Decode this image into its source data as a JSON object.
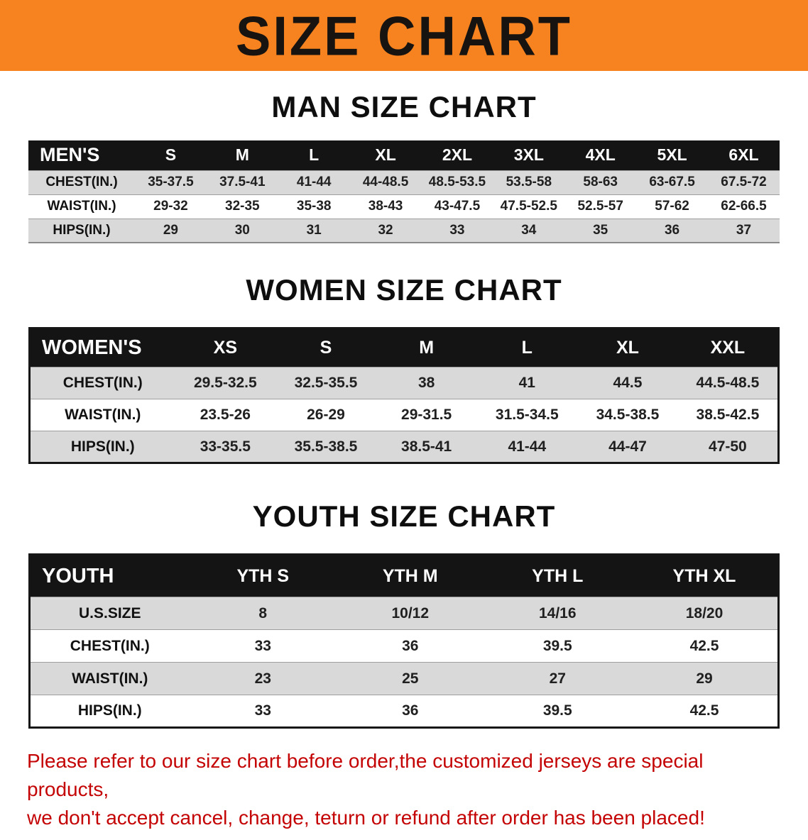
{
  "banner": {
    "title": "SIZE CHART"
  },
  "colors": {
    "banner_bg": "#F6831F",
    "table_header_bg": "#141414",
    "row_gray": "#D9D9D9",
    "disclaimer_red": "#C40404"
  },
  "sections": {
    "men": {
      "heading": "MAN SIZE CHART",
      "table": {
        "header": [
          "MEN'S",
          "S",
          "M",
          "L",
          "XL",
          "2XL",
          "3XL",
          "4XL",
          "5XL",
          "6XL"
        ],
        "rows": [
          [
            "CHEST(IN.)",
            "35-37.5",
            "37.5-41",
            "41-44",
            "44-48.5",
            "48.5-53.5",
            "53.5-58",
            "58-63",
            "63-67.5",
            "67.5-72"
          ],
          [
            "WAIST(IN.)",
            "29-32",
            "32-35",
            "35-38",
            "38-43",
            "43-47.5",
            "47.5-52.5",
            "52.5-57",
            "57-62",
            "62-66.5"
          ],
          [
            "HIPS(IN.)",
            "29",
            "30",
            "31",
            "32",
            "33",
            "34",
            "35",
            "36",
            "37"
          ]
        ]
      }
    },
    "women": {
      "heading": "WOMEN SIZE CHART",
      "table": {
        "header": [
          "WOMEN'S",
          "XS",
          "S",
          "M",
          "L",
          "XL",
          "XXL"
        ],
        "rows": [
          [
            "CHEST(IN.)",
            "29.5-32.5",
            "32.5-35.5",
            "38",
            "41",
            "44.5",
            "44.5-48.5"
          ],
          [
            "WAIST(IN.)",
            "23.5-26",
            "26-29",
            "29-31.5",
            "31.5-34.5",
            "34.5-38.5",
            "38.5-42.5"
          ],
          [
            "HIPS(IN.)",
            "33-35.5",
            "35.5-38.5",
            "38.5-41",
            "41-44",
            "44-47",
            "47-50"
          ]
        ]
      }
    },
    "youth": {
      "heading": "YOUTH SIZE CHART",
      "table": {
        "header": [
          "YOUTH",
          "YTH S",
          "YTH M",
          "YTH L",
          "YTH XL"
        ],
        "rows": [
          [
            "U.S.SIZE",
            "8",
            "10/12",
            "14/16",
            "18/20"
          ],
          [
            "CHEST(IN.)",
            "33",
            "36",
            "39.5",
            "42.5"
          ],
          [
            "WAIST(IN.)",
            "23",
            "25",
            "27",
            "29"
          ],
          [
            "HIPS(IN.)",
            "33",
            "36",
            "39.5",
            "42.5"
          ]
        ]
      }
    }
  },
  "disclaimer": {
    "line1": "Please refer to our size chart before order,the customized jerseys are special products,",
    "line2": "we don't accept cancel, change, teturn or refund after order has been placed!"
  }
}
